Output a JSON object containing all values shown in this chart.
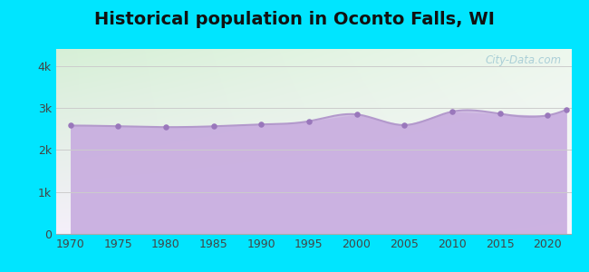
{
  "title": "Historical population in Oconto Falls, WI",
  "title_fontsize": 14,
  "title_fontweight": "bold",
  "years": [
    1970,
    1975,
    1980,
    1985,
    1990,
    1995,
    2000,
    2005,
    2010,
    2015,
    2020,
    2022
  ],
  "population": [
    2578,
    2561,
    2541,
    2560,
    2604,
    2681,
    2843,
    2590,
    2909,
    2858,
    2820,
    2960
  ],
  "line_color": "#b399cc",
  "fill_color": "#c9aee0",
  "fill_alpha": 0.75,
  "marker_color": "#9977bb",
  "marker_size": 22,
  "bg_outer": "#00e5ff",
  "bg_plot_topleft": "#d8f0d8",
  "bg_plot_topright": "#eaf5ea",
  "bg_plot_bottom": "#f0eef8",
  "grid_color": "#cccccc",
  "yticks": [
    0,
    1000,
    2000,
    3000,
    4000
  ],
  "ytick_labels": [
    "0",
    "1k",
    "2k",
    "3k",
    "4k"
  ],
  "ylim": [
    0,
    4400
  ],
  "xticks": [
    1970,
    1975,
    1980,
    1985,
    1990,
    1995,
    2000,
    2005,
    2010,
    2015,
    2020
  ],
  "xlim": [
    1968.5,
    2022.5
  ],
  "tick_fontsize": 9,
  "watermark": "City-Data.com"
}
